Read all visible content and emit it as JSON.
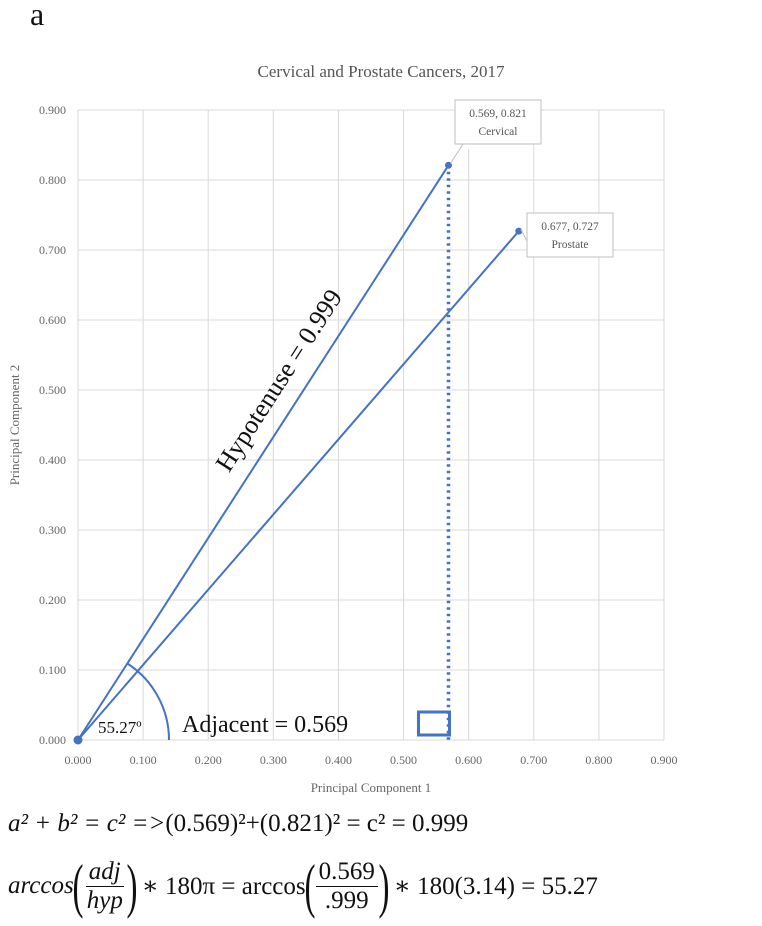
{
  "panel_label": "a",
  "chart_data": {
    "type": "line",
    "title": "Cervical and Prostate Cancers, 2017",
    "xlabel": "Principal Component 1",
    "ylabel": "Principal Component 2",
    "xlim": [
      0,
      0.9
    ],
    "ylim": [
      0,
      0.9
    ],
    "grid": true,
    "x_ticks": [
      "0.000",
      "0.100",
      "0.200",
      "0.300",
      "0.400",
      "0.500",
      "0.600",
      "0.700",
      "0.800",
      "0.900"
    ],
    "y_ticks": [
      "0.000",
      "0.100",
      "0.200",
      "0.300",
      "0.400",
      "0.500",
      "0.600",
      "0.700",
      "0.800",
      "0.900"
    ],
    "line_color": "#4472c4",
    "series": [
      {
        "name": "Cervical",
        "points": [
          [
            0,
            0
          ],
          [
            0.569,
            0.821
          ]
        ],
        "label_coords": "0.569, 0.821",
        "label_name": "Cervical"
      },
      {
        "name": "Prostate",
        "points": [
          [
            0,
            0
          ],
          [
            0.677,
            0.727
          ]
        ],
        "label_coords": "0.677, 0.727",
        "label_name": "Prostate"
      }
    ],
    "drop_line": {
      "x": 0.569,
      "y_from": 0,
      "y_to": 0.821,
      "style": "dotted"
    },
    "annotations": {
      "hypotenuse": "Hypotenuse = 0.999",
      "adjacent": "Adjacent = 0.569",
      "angle": "55.27º"
    }
  },
  "equations": {
    "line1": {
      "lhs": "a² + b² = c² =>",
      "rhs": "(0.569)²+(0.821)² = c² = 0.999"
    },
    "line2": {
      "arccos_italic": "arccos",
      "num1": "adj",
      "den1": "hyp",
      "mult1": "∗ 180π = arccos",
      "num2": "0.569",
      "den2": ".999",
      "tail": "∗ 180(3.14) = 55.27"
    }
  }
}
